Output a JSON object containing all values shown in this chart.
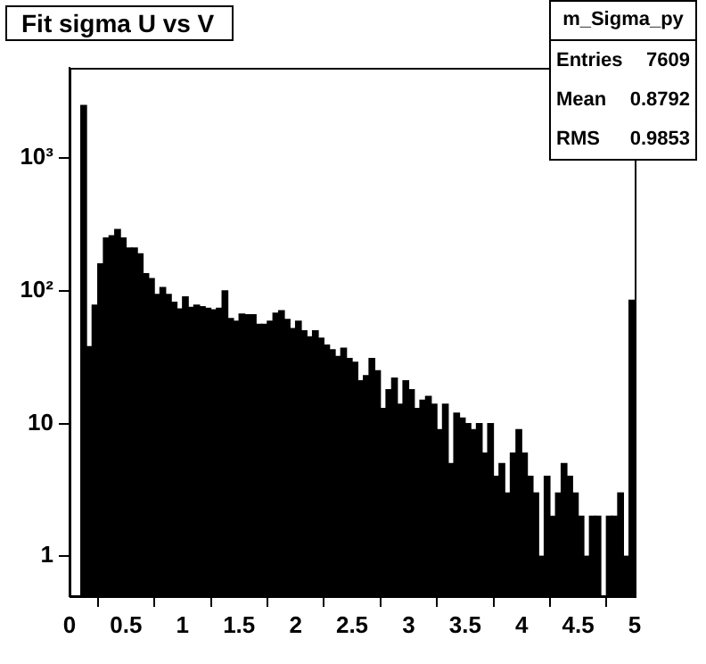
{
  "chart_data": {
    "type": "histogram",
    "title": "Fit sigma U vs V",
    "annotations": [
      "m_Sigma_py",
      "Entries 7609",
      "Mean 0.8792",
      "RMS 0.9853"
    ],
    "bins": [
      0.1,
      0.15,
      0.2,
      0.25,
      0.3,
      0.35,
      0.4,
      0.45,
      0.5,
      0.55,
      0.6,
      0.65,
      0.7,
      0.75,
      0.8,
      0.85,
      0.9,
      0.95,
      1.0,
      1.05,
      1.1,
      1.15,
      1.2,
      1.25,
      1.3,
      1.35,
      1.4,
      1.45,
      1.5,
      1.55,
      1.6,
      1.65,
      1.7,
      1.75,
      1.8,
      1.85,
      1.9,
      1.95,
      2.0,
      2.05,
      2.1,
      2.15,
      2.2,
      2.25,
      2.3,
      2.35,
      2.4,
      2.45,
      2.5,
      2.55,
      2.6,
      2.65,
      2.7,
      2.75,
      2.8,
      2.85,
      2.9,
      2.95,
      3.0,
      3.05,
      3.1,
      3.15,
      3.2,
      3.25,
      3.3,
      3.35,
      3.4,
      3.45,
      3.5,
      3.55,
      3.6,
      3.65,
      3.7,
      3.75,
      3.8,
      3.85,
      3.9,
      3.95,
      4.0,
      4.05,
      4.1,
      4.15,
      4.2,
      4.25,
      4.3,
      4.35,
      4.4,
      4.45,
      4.5,
      4.55,
      4.6,
      4.65,
      4.7,
      4.75,
      4.8,
      4.85,
      4.9,
      4.95,
      5.0
    ],
    "values": [
      2500,
      38,
      78,
      160,
      250,
      260,
      290,
      250,
      210,
      210,
      190,
      135,
      124,
      94,
      106,
      94,
      82,
      73,
      90,
      75,
      78,
      76,
      74,
      72,
      74,
      100,
      62,
      59,
      67,
      66,
      66,
      56,
      56,
      59,
      68,
      71,
      61,
      52,
      59,
      50,
      45,
      50,
      44,
      39,
      36,
      32,
      37,
      31,
      29,
      21,
      23,
      31,
      25,
      13,
      18,
      22,
      14,
      21,
      18,
      13,
      15,
      16,
      14,
      9,
      14,
      5,
      12,
      11,
      10,
      9,
      10,
      6,
      10,
      4,
      5,
      3,
      6,
      9,
      6,
      4,
      3,
      1,
      4,
      2,
      3,
      5,
      4,
      3,
      2,
      1,
      2,
      2,
      null,
      2,
      2,
      3,
      1,
      85
    ],
    "color": "#000000",
    "xlim": [
      0,
      5
    ],
    "xticks": [
      0,
      0.5,
      1,
      1.5,
      2,
      2.5,
      3,
      3.5,
      4,
      4.5,
      5
    ],
    "ylim": [
      0.5,
      4800
    ],
    "yticks": [
      {
        "value": 1,
        "label": "1"
      },
      {
        "value": 10,
        "label": "10"
      },
      {
        "value": 100,
        "label": "10²"
      },
      {
        "value": 1000,
        "label": "10³"
      }
    ],
    "log": true
  }
}
